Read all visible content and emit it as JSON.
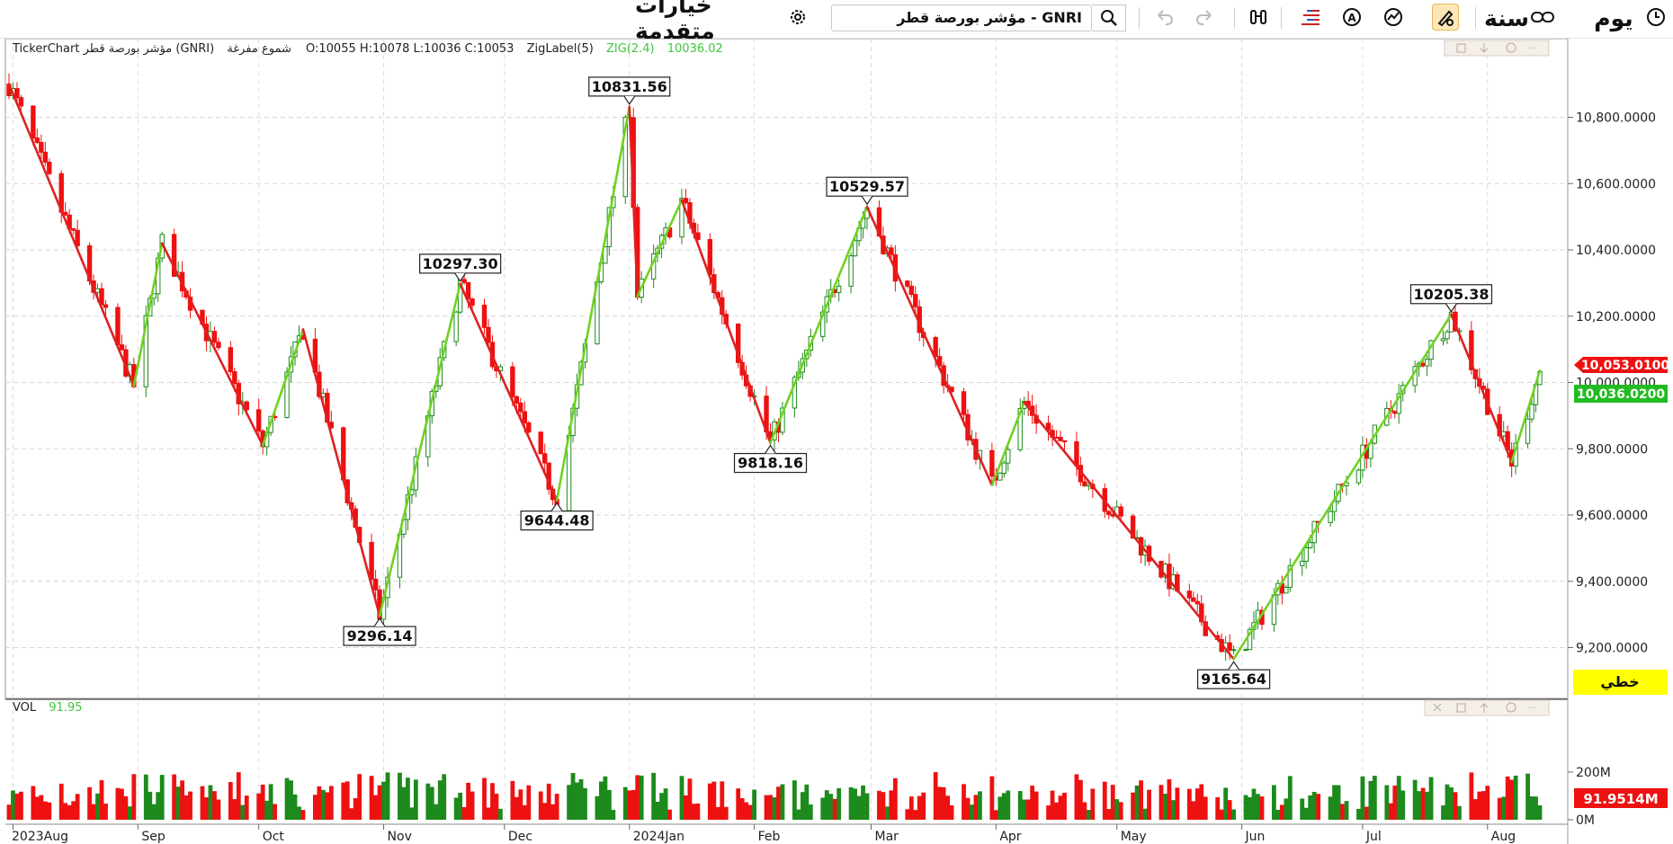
{
  "toolbar": {
    "period_day": "يوم",
    "period_year": "سنة",
    "symbol": "GNRI - مؤشر بورصة قطر",
    "advanced_options": "خيارات متقدمة"
  },
  "info_bar": {
    "prefix": "TickerChart مؤشر بورصة قطر (GNRI)",
    "candle_type": "شموع مفرغة",
    "ohlc": "O:10055  H:10078  L:10036  C:10053",
    "zig_label": "ZigLabel(5)",
    "zig_name": "ZIG(2.4)",
    "zig_value": "10036.02"
  },
  "volume_bar": {
    "label": "VOL",
    "value": "91.95"
  },
  "price_tags": {
    "last_price": "10,053.0100",
    "zig_price": "10,036.0200",
    "volume_value": "91.9514M",
    "line_mode": "خطي"
  },
  "colors": {
    "up": "#1c8a1c",
    "down": "#ee1111",
    "zig_up": "#6fd21f",
    "zig_down": "#e02020",
    "last_tag": "#ee1111",
    "zig_tag": "#22bb22",
    "line_tag": "#ffff00"
  },
  "chart_data": {
    "type": "candlestick",
    "symbol": "GNRI",
    "y_axis": {
      "min": 9100,
      "max": 11050,
      "ticks": [
        "10,800.0000",
        "10,600.0000",
        "10,400.0000",
        "10,200.0000",
        "10,000.0000",
        "9,800.0000",
        "9,600.0000",
        "9,400.0000",
        "9,200.0000"
      ],
      "tick_values": [
        10800,
        10600,
        10400,
        10200,
        10000,
        9800,
        9600,
        9400,
        9200
      ]
    },
    "x_axis": {
      "labels": [
        "2023Aug",
        "Sep",
        "Oct",
        "Nov",
        "Dec",
        "2024Jan",
        "Feb",
        "Mar",
        "Apr",
        "May",
        "Jun",
        "Jul",
        "Aug"
      ]
    },
    "volume_axis": {
      "ticks": [
        "200M",
        "0M"
      ],
      "tick_values": [
        200,
        0
      ]
    },
    "zigzag": [
      {
        "date": "2023-07-31",
        "value": 10900
      },
      {
        "date": "2023-08-31",
        "value": 9990
      },
      {
        "date": "2023-09-07",
        "value": 10420
      },
      {
        "date": "2023-10-02",
        "value": 9810
      },
      {
        "date": "2023-10-12",
        "value": 10160
      },
      {
        "date": "2023-10-31",
        "value": 9296.14
      },
      {
        "date": "2023-11-20",
        "value": 10297.3
      },
      {
        "date": "2023-12-14",
        "value": 9644.48
      },
      {
        "date": "2024-01-01",
        "value": 10831.56
      },
      {
        "date": "2024-01-03",
        "value": 10260
      },
      {
        "date": "2024-01-14",
        "value": 10550
      },
      {
        "date": "2024-02-05",
        "value": 9818.16
      },
      {
        "date": "2024-02-29",
        "value": 10529.57
      },
      {
        "date": "2024-03-31",
        "value": 9690
      },
      {
        "date": "2024-04-08",
        "value": 9940
      },
      {
        "date": "2024-05-30",
        "value": 9165.64
      },
      {
        "date": "2024-07-23",
        "value": 10205.38
      },
      {
        "date": "2024-08-07",
        "value": 9760
      },
      {
        "date": "2024-08-14",
        "value": 10036.02
      }
    ],
    "swing_labels": [
      {
        "date": "2023-10-31",
        "value": 9296.14,
        "label": "9296.14",
        "pos": "below"
      },
      {
        "date": "2023-11-20",
        "value": 10297.3,
        "label": "10297.30",
        "pos": "above"
      },
      {
        "date": "2023-12-14",
        "value": 9644.48,
        "label": "9644.48",
        "pos": "below"
      },
      {
        "date": "2024-01-01",
        "value": 10831.56,
        "label": "10831.56",
        "pos": "above"
      },
      {
        "date": "2024-02-05",
        "value": 9818.16,
        "label": "9818.16",
        "pos": "below"
      },
      {
        "date": "2024-02-29",
        "value": 10529.57,
        "label": "10529.57",
        "pos": "above"
      },
      {
        "date": "2024-05-30",
        "value": 9165.64,
        "label": "9165.64",
        "pos": "below"
      },
      {
        "date": "2024-07-23",
        "value": 10205.38,
        "label": "10205.38",
        "pos": "above"
      }
    ],
    "last": {
      "open": 10055,
      "high": 10078,
      "low": 10036,
      "close": 10053,
      "volume_m": 91.95
    }
  }
}
